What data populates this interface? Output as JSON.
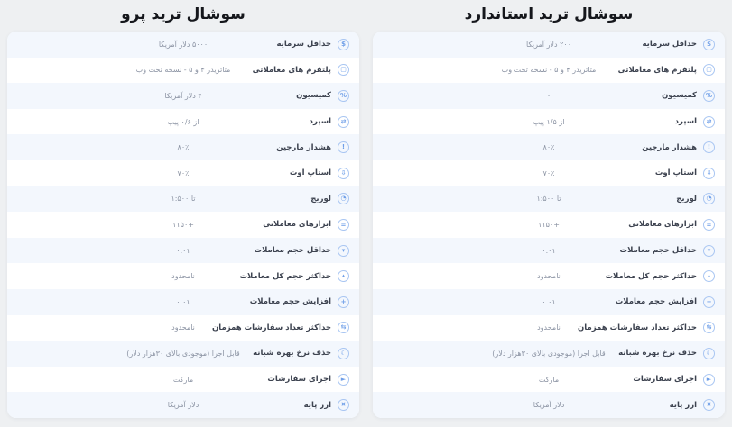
{
  "colors": {
    "page_bg": "#eef0f2",
    "card_bg": "#ffffff",
    "row_alt_bg": "#f3f7fd",
    "accent_icon": "#6f9fe8",
    "title_text": "#15171c",
    "label_text": "#3d4350",
    "value_text": "#8b93a3"
  },
  "icon_glyphs": {
    "min-capital": "$",
    "platforms": "▢",
    "commission": "%",
    "spread": "⇄",
    "margin-alert": "!",
    "stop-out": "⇩",
    "leverage": "◔",
    "instruments": "≡",
    "min-volume": "▾",
    "max-total-volume": "▴",
    "volume-step": "+",
    "max-orders": "⇆",
    "swap-free": "☾",
    "execution": "►",
    "base-currency": "¤"
  },
  "cards": [
    {
      "title": "سوشال ترید استاندارد",
      "rows": [
        {
          "icon": "min-capital",
          "label": "حداقل سرمایه",
          "value": "۲۰۰ دلار آمریکا"
        },
        {
          "icon": "platforms",
          "label": "پلتفرم های معاملاتی",
          "value": "متاتریدر ۴ و ۵ - نسخه تحت وب"
        },
        {
          "icon": "commission",
          "label": "کمیسیون",
          "value": "۰"
        },
        {
          "icon": "spread",
          "label": "اسپرد",
          "value": "از ۱/۵ پیپ"
        },
        {
          "icon": "margin-alert",
          "label": "هشدار مارجین",
          "value": "۸۰٪"
        },
        {
          "icon": "stop-out",
          "label": "استاپ اوت",
          "value": "۷۰٪"
        },
        {
          "icon": "leverage",
          "label": "لوریج",
          "value": "تا ۱:۵۰۰"
        },
        {
          "icon": "instruments",
          "label": "ابزارهای معاملاتی",
          "value": "+۱۱۵۰"
        },
        {
          "icon": "min-volume",
          "label": "حداقل حجم معاملات",
          "value": "۰.۰۱"
        },
        {
          "icon": "max-total-volume",
          "label": "حداکثر حجم کل معاملات",
          "value": "نامحدود"
        },
        {
          "icon": "volume-step",
          "label": "افزایش حجم معاملات",
          "value": "۰.۰۱"
        },
        {
          "icon": "max-orders",
          "label": "حداکثر تعداد سفارشات همزمان",
          "value": "نامحدود"
        },
        {
          "icon": "swap-free",
          "label": "حذف نرخ بهره شبانه",
          "value": "قابل اجرا (موجودی بالای ۳۰هزار دلار)"
        },
        {
          "icon": "execution",
          "label": "اجرای سفارشات",
          "value": "مارکت"
        },
        {
          "icon": "base-currency",
          "label": "ارز پایه",
          "value": "دلار آمریکا"
        }
      ]
    },
    {
      "title": "سوشال ترید پرو",
      "rows": [
        {
          "icon": "min-capital",
          "label": "حداقل سرمایه",
          "value": "۵۰۰۰ دلار آمریکا"
        },
        {
          "icon": "platforms",
          "label": "پلتفرم های معاملاتی",
          "value": "متاتریدر ۴ و ۵ - نسخه تحت وب"
        },
        {
          "icon": "commission",
          "label": "کمیسیون",
          "value": "۴ دلار آمریکا"
        },
        {
          "icon": "spread",
          "label": "اسپرد",
          "value": "از ۰/۶ پیپ"
        },
        {
          "icon": "margin-alert",
          "label": "هشدار مارجین",
          "value": "۸۰٪"
        },
        {
          "icon": "stop-out",
          "label": "استاپ اوت",
          "value": "۷۰٪"
        },
        {
          "icon": "leverage",
          "label": "لوریج",
          "value": "تا ۱:۵۰۰"
        },
        {
          "icon": "instruments",
          "label": "ابزارهای معاملاتی",
          "value": "+۱۱۵۰"
        },
        {
          "icon": "min-volume",
          "label": "حداقل حجم معاملات",
          "value": "۰.۰۱"
        },
        {
          "icon": "max-total-volume",
          "label": "حداکثر حجم کل معاملات",
          "value": "نامحدود"
        },
        {
          "icon": "volume-step",
          "label": "افزایش حجم معاملات",
          "value": "۰.۰۱"
        },
        {
          "icon": "max-orders",
          "label": "حداکثر تعداد سفارشات همزمان",
          "value": "نامحدود"
        },
        {
          "icon": "swap-free",
          "label": "حذف نرخ بهره شبانه",
          "value": "قابل اجرا (موجودی بالای ۳۰هزار دلار)"
        },
        {
          "icon": "execution",
          "label": "اجرای سفارشات",
          "value": "مارکت"
        },
        {
          "icon": "base-currency",
          "label": "ارز پایه",
          "value": "دلار آمریکا"
        }
      ]
    }
  ]
}
